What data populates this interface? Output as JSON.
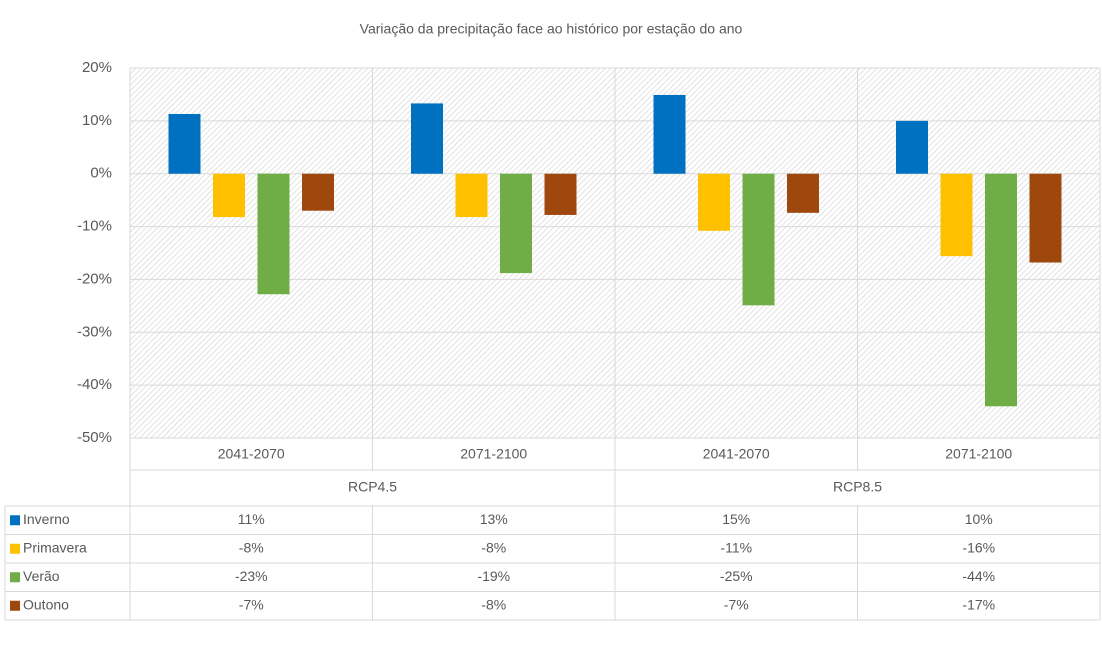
{
  "chart_data": {
    "type": "bar",
    "title": "Variação da precipitação face ao histórico por estação do ano",
    "categories": [
      "2041-2070",
      "2071-2100",
      "2041-2070",
      "2071-2100"
    ],
    "groups": [
      "RCP4.5",
      "RCP8.5"
    ],
    "series": [
      {
        "name": "Inverno",
        "color": "#0070c0",
        "values": [
          11.3,
          13.3,
          14.9,
          10.0
        ],
        "value_labels": [
          "11%",
          "13%",
          "15%",
          "10%"
        ]
      },
      {
        "name": "Primavera",
        "color": "#ffc000",
        "values": [
          -8.2,
          -8.2,
          -10.8,
          -15.6
        ],
        "value_labels": [
          "-8%",
          "-8%",
          "-11%",
          "-16%"
        ]
      },
      {
        "name": "Verão",
        "color": "#70ad47",
        "values": [
          -22.8,
          -18.8,
          -24.9,
          -44.0
        ],
        "value_labels": [
          "-23%",
          "-19%",
          "-25%",
          "-44%"
        ]
      },
      {
        "name": "Outono",
        "color": "#9e480e",
        "values": [
          -7.0,
          -7.8,
          -7.4,
          -16.8
        ],
        "value_labels": [
          "-7%",
          "-8%",
          "-7%",
          "-17%"
        ]
      }
    ],
    "ylim": [
      -50,
      20
    ],
    "yticks": [
      {
        "value": -50,
        "label": "-50%"
      },
      {
        "value": -40,
        "label": "-40%"
      },
      {
        "value": -30,
        "label": "-30%"
      },
      {
        "value": -20,
        "label": "-20%"
      },
      {
        "value": -10,
        "label": "-10%"
      },
      {
        "value": 0,
        "label": "0%"
      },
      {
        "value": 10,
        "label": "10%"
      },
      {
        "value": 20,
        "label": "20%"
      }
    ],
    "grid": true
  }
}
